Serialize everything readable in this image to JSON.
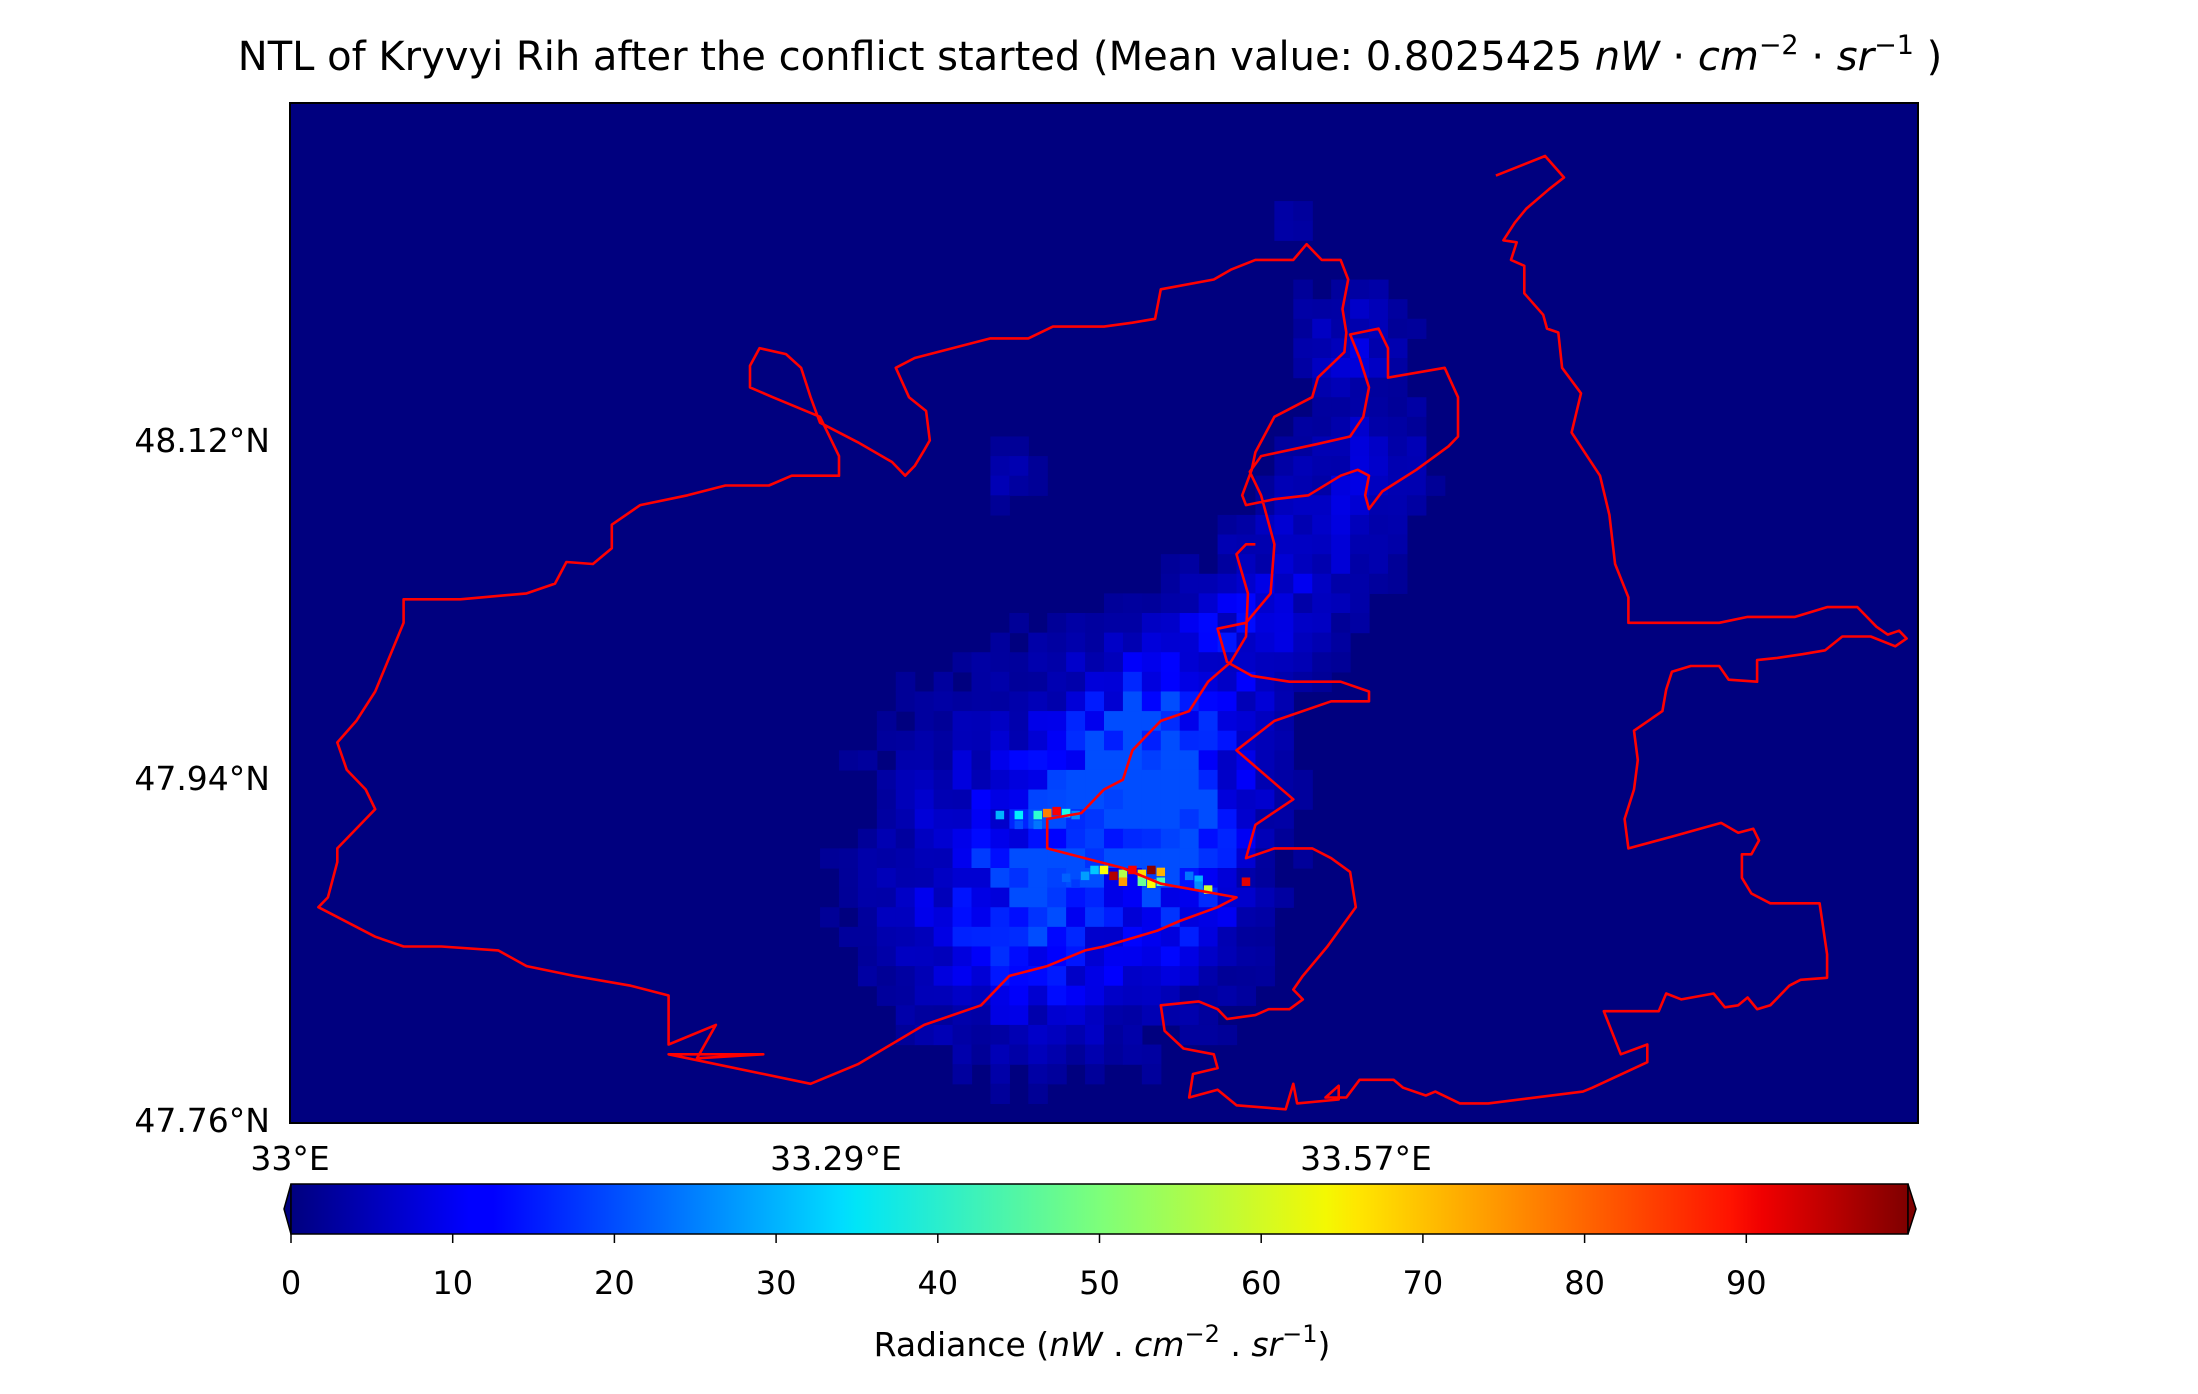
{
  "chart_data": {
    "type": "heatmap",
    "title_prefix": "NTL of Kryvyi Rih after the conflict started (Mean value: ",
    "mean_value": "0.8025425",
    "title_suffix": " )",
    "unit": {
      "main": "nW",
      "dot": " · ",
      "a": "cm",
      "exp_a": "−2",
      "b": "sr",
      "exp_b": "−1"
    },
    "x_axis": {
      "tick_labels": [
        "33°E",
        "33.29°E",
        "33.57°E"
      ],
      "ticks": [
        33.0,
        33.29,
        33.57
      ],
      "range": [
        33.0,
        33.86
      ]
    },
    "y_axis": {
      "tick_labels": [
        "48.12°N",
        "47.94°N",
        "47.76°N"
      ],
      "ticks": [
        48.12,
        47.94,
        47.76
      ],
      "range": [
        47.76,
        48.28
      ]
    },
    "colormap": "jet",
    "colorbar": {
      "min": 0,
      "max": 100,
      "extend": "both",
      "tick_labels": [
        "0",
        "10",
        "20",
        "30",
        "40",
        "50",
        "60",
        "70",
        "80",
        "90"
      ],
      "label": {
        "main": "Radiance (",
        "nW": "nW",
        "dot": " . ",
        "cm": "cm",
        "exp_a": "−2",
        "sr": "sr",
        "exp_b": "−1",
        "close": ")"
      }
    },
    "boundary_color": "#ff0000",
    "background_value": 0,
    "radiance_grid": {
      "cell_deg": 0.01,
      "origin_lon": 33.0,
      "origin_lat": 48.28,
      "cols": 86,
      "rows": 52,
      "hotspots": [
        {
          "lon": 33.385,
          "lat": 47.917,
          "value": 36
        },
        {
          "lon": 33.395,
          "lat": 47.917,
          "value": 42
        },
        {
          "lon": 33.375,
          "lat": 47.917,
          "value": 30
        },
        {
          "lon": 33.4,
          "lat": 47.918,
          "value": 75
        },
        {
          "lon": 33.405,
          "lat": 47.919,
          "value": 88
        },
        {
          "lon": 33.41,
          "lat": 47.918,
          "value": 40
        },
        {
          "lon": 33.415,
          "lat": 47.917,
          "value": 26
        },
        {
          "lon": 33.385,
          "lat": 47.912,
          "value": 20
        },
        {
          "lon": 33.395,
          "lat": 47.912,
          "value": 24
        },
        {
          "lon": 33.43,
          "lat": 47.889,
          "value": 62
        },
        {
          "lon": 33.435,
          "lat": 47.886,
          "value": 95
        },
        {
          "lon": 33.44,
          "lat": 47.887,
          "value": 55
        },
        {
          "lon": 33.445,
          "lat": 47.889,
          "value": 88
        },
        {
          "lon": 33.45,
          "lat": 47.887,
          "value": 66
        },
        {
          "lon": 33.455,
          "lat": 47.889,
          "value": 99
        },
        {
          "lon": 33.46,
          "lat": 47.888,
          "value": 70
        },
        {
          "lon": 33.44,
          "lat": 47.883,
          "value": 72
        },
        {
          "lon": 33.45,
          "lat": 47.883,
          "value": 48
        },
        {
          "lon": 33.455,
          "lat": 47.882,
          "value": 62
        },
        {
          "lon": 33.46,
          "lat": 47.883,
          "value": 45
        },
        {
          "lon": 33.42,
          "lat": 47.886,
          "value": 28
        },
        {
          "lon": 33.425,
          "lat": 47.889,
          "value": 32
        },
        {
          "lon": 33.41,
          "lat": 47.885,
          "value": 22
        },
        {
          "lon": 33.415,
          "lat": 47.882,
          "value": 18
        },
        {
          "lon": 33.475,
          "lat": 47.886,
          "value": 24
        },
        {
          "lon": 33.48,
          "lat": 47.884,
          "value": 30
        },
        {
          "lon": 33.485,
          "lat": 47.879,
          "value": 58
        },
        {
          "lon": 33.48,
          "lat": 47.881,
          "value": 26
        },
        {
          "lon": 33.505,
          "lat": 47.883,
          "value": 90
        }
      ],
      "glow_clusters": [
        {
          "lon": 33.41,
          "lat": 47.895,
          "spread": 0.09,
          "value": 11
        },
        {
          "lon": 33.45,
          "lat": 47.93,
          "spread": 0.05,
          "value": 10
        },
        {
          "lon": 33.47,
          "lat": 47.97,
          "spread": 0.04,
          "value": 8
        },
        {
          "lon": 33.5,
          "lat": 48.01,
          "spread": 0.035,
          "value": 7
        },
        {
          "lon": 33.54,
          "lat": 48.05,
          "spread": 0.04,
          "value": 7
        },
        {
          "lon": 33.57,
          "lat": 48.1,
          "spread": 0.035,
          "value": 6
        },
        {
          "lon": 33.56,
          "lat": 48.16,
          "spread": 0.03,
          "value": 7
        },
        {
          "lon": 33.38,
          "lat": 47.86,
          "spread": 0.05,
          "value": 7
        },
        {
          "lon": 33.47,
          "lat": 47.87,
          "spread": 0.03,
          "value": 6
        },
        {
          "lon": 33.38,
          "lat": 48.09,
          "spread": 0.015,
          "value": 5
        },
        {
          "lon": 33.53,
          "lat": 48.22,
          "spread": 0.01,
          "value": 5
        },
        {
          "lon": 33.44,
          "lat": 47.94,
          "spread": 0.02,
          "value": 14
        },
        {
          "lon": 33.47,
          "lat": 47.91,
          "spread": 0.025,
          "value": 13
        }
      ]
    },
    "boundary_lonlat": [
      [
        33.637,
        48.243
      ],
      [
        33.663,
        48.253
      ],
      [
        33.673,
        48.242
      ],
      [
        33.665,
        48.236
      ],
      [
        33.653,
        48.226
      ],
      [
        33.647,
        48.219
      ],
      [
        33.641,
        48.21
      ],
      [
        33.648,
        48.209
      ],
      [
        33.645,
        48.2
      ],
      [
        33.652,
        48.197
      ],
      [
        33.652,
        48.183
      ],
      [
        33.662,
        48.172
      ],
      [
        33.664,
        48.165
      ],
      [
        33.67,
        48.163
      ],
      [
        33.672,
        48.145
      ],
      [
        33.682,
        48.132
      ],
      [
        33.677,
        48.112
      ],
      [
        33.692,
        48.09
      ],
      [
        33.697,
        48.07
      ],
      [
        33.7,
        48.045
      ],
      [
        33.707,
        48.028
      ],
      [
        33.707,
        48.015
      ],
      [
        33.73,
        48.015
      ],
      [
        33.755,
        48.015
      ],
      [
        33.77,
        48.018
      ],
      [
        33.795,
        48.018
      ],
      [
        33.812,
        48.023
      ],
      [
        33.828,
        48.023
      ],
      [
        33.838,
        48.013
      ],
      [
        33.844,
        48.009
      ],
      [
        33.85,
        48.011
      ],
      [
        33.854,
        48.007
      ],
      [
        33.848,
        48.003
      ],
      [
        33.835,
        48.008
      ],
      [
        33.82,
        48.008
      ],
      [
        33.811,
        48.001
      ],
      [
        33.799,
        47.999
      ],
      [
        33.785,
        47.997
      ],
      [
        33.775,
        47.996
      ],
      [
        33.775,
        47.985
      ],
      [
        33.76,
        47.986
      ],
      [
        33.755,
        47.993
      ],
      [
        33.74,
        47.993
      ],
      [
        33.73,
        47.99
      ],
      [
        33.727,
        47.981
      ],
      [
        33.725,
        47.97
      ],
      [
        33.71,
        47.96
      ],
      [
        33.712,
        47.945
      ],
      [
        33.71,
        47.93
      ],
      [
        33.705,
        47.915
      ],
      [
        33.707,
        47.9
      ],
      [
        33.73,
        47.906
      ],
      [
        33.756,
        47.913
      ],
      [
        33.765,
        47.908
      ],
      [
        33.773,
        47.91
      ],
      [
        33.776,
        47.904
      ],
      [
        33.772,
        47.897
      ],
      [
        33.767,
        47.897
      ],
      [
        33.767,
        47.885
      ],
      [
        33.772,
        47.877
      ],
      [
        33.782,
        47.872
      ],
      [
        33.808,
        47.872
      ],
      [
        33.812,
        47.846
      ],
      [
        33.812,
        47.834
      ],
      [
        33.798,
        47.833
      ],
      [
        33.792,
        47.83
      ],
      [
        33.782,
        47.82
      ],
      [
        33.775,
        47.818
      ],
      [
        33.77,
        47.824
      ],
      [
        33.765,
        47.82
      ],
      [
        33.758,
        47.819
      ],
      [
        33.752,
        47.826
      ],
      [
        33.735,
        47.823
      ],
      [
        33.727,
        47.826
      ],
      [
        33.723,
        47.817
      ],
      [
        33.694,
        47.817
      ],
      [
        33.703,
        47.795
      ],
      [
        33.717,
        47.8
      ],
      [
        33.717,
        47.791
      ],
      [
        33.688,
        47.778
      ],
      [
        33.683,
        47.776
      ],
      [
        33.633,
        47.77
      ],
      [
        33.618,
        47.77
      ],
      [
        33.605,
        47.776
      ],
      [
        33.6,
        47.774
      ],
      [
        33.588,
        47.778
      ],
      [
        33.583,
        47.782
      ],
      [
        33.565,
        47.782
      ],
      [
        33.558,
        47.773
      ],
      [
        33.547,
        47.773
      ],
      [
        33.554,
        47.779
      ],
      [
        33.554,
        47.772
      ],
      [
        33.532,
        47.77
      ],
      [
        33.53,
        47.78
      ],
      [
        33.526,
        47.767
      ],
      [
        33.5,
        47.769
      ],
      [
        33.49,
        47.777
      ],
      [
        33.475,
        47.773
      ],
      [
        33.477,
        47.785
      ],
      [
        33.49,
        47.788
      ],
      [
        33.488,
        47.795
      ],
      [
        33.472,
        47.798
      ],
      [
        33.462,
        47.807
      ],
      [
        33.46,
        47.82
      ],
      [
        33.48,
        47.822
      ],
      [
        33.49,
        47.818
      ],
      [
        33.495,
        47.813
      ],
      [
        33.51,
        47.815
      ],
      [
        33.517,
        47.818
      ],
      [
        33.528,
        47.818
      ],
      [
        33.535,
        47.823
      ],
      [
        33.53,
        47.828
      ],
      [
        33.535,
        47.835
      ],
      [
        33.548,
        47.85
      ],
      [
        33.563,
        47.87
      ],
      [
        33.56,
        47.888
      ],
      [
        33.55,
        47.895
      ],
      [
        33.54,
        47.9
      ],
      [
        33.52,
        47.9
      ],
      [
        33.505,
        47.895
      ],
      [
        33.51,
        47.912
      ],
      [
        33.53,
        47.925
      ],
      [
        33.5,
        47.95
      ],
      [
        33.52,
        47.965
      ],
      [
        33.55,
        47.975
      ],
      [
        33.57,
        47.975
      ],
      [
        33.57,
        47.98
      ],
      [
        33.555,
        47.985
      ],
      [
        33.528,
        47.985
      ],
      [
        33.508,
        47.988
      ],
      [
        33.495,
        47.995
      ],
      [
        33.49,
        48.012
      ],
      [
        33.505,
        48.015
      ],
      [
        33.518,
        48.03
      ],
      [
        33.52,
        48.055
      ],
      [
        33.513,
        48.08
      ],
      [
        33.507,
        48.092
      ],
      [
        33.513,
        48.1
      ],
      [
        33.542,
        48.106
      ],
      [
        33.56,
        48.11
      ],
      [
        33.567,
        48.12
      ],
      [
        33.57,
        48.135
      ],
      [
        33.565,
        48.15
      ],
      [
        33.56,
        48.162
      ],
      [
        33.575,
        48.165
      ],
      [
        33.58,
        48.155
      ],
      [
        33.58,
        48.14
      ],
      [
        33.61,
        48.145
      ],
      [
        33.617,
        48.13
      ],
      [
        33.617,
        48.11
      ],
      [
        33.612,
        48.105
      ],
      [
        33.595,
        48.093
      ],
      [
        33.577,
        48.082
      ],
      [
        33.57,
        48.073
      ],
      [
        33.568,
        48.08
      ],
      [
        33.57,
        48.09
      ],
      [
        33.564,
        48.093
      ],
      [
        33.555,
        48.09
      ],
      [
        33.538,
        48.08
      ],
      [
        33.52,
        48.078
      ],
      [
        33.505,
        48.075
      ],
      [
        33.503,
        48.08
      ],
      [
        33.508,
        48.093
      ],
      [
        33.51,
        48.102
      ],
      [
        33.52,
        48.12
      ],
      [
        33.54,
        48.13
      ],
      [
        33.543,
        48.14
      ],
      [
        33.557,
        48.153
      ],
      [
        33.558,
        48.163
      ],
      [
        33.556,
        48.175
      ],
      [
        33.559,
        48.19
      ],
      [
        33.555,
        48.2
      ],
      [
        33.545,
        48.2
      ],
      [
        33.537,
        48.208
      ],
      [
        33.53,
        48.2
      ],
      [
        33.51,
        48.2
      ],
      [
        33.497,
        48.195
      ],
      [
        33.488,
        48.19
      ],
      [
        33.46,
        48.185
      ],
      [
        33.457,
        48.17
      ],
      [
        33.445,
        48.168
      ],
      [
        33.43,
        48.166
      ],
      [
        33.403,
        48.166
      ],
      [
        33.39,
        48.16
      ],
      [
        33.37,
        48.16
      ],
      [
        33.33,
        48.15
      ],
      [
        33.32,
        48.145
      ],
      [
        33.327,
        48.13
      ],
      [
        33.336,
        48.123
      ],
      [
        33.338,
        48.108
      ],
      [
        33.335,
        48.103
      ],
      [
        33.33,
        48.095
      ],
      [
        33.325,
        48.09
      ],
      [
        33.318,
        48.097
      ],
      [
        33.3,
        48.107
      ],
      [
        33.28,
        48.117
      ],
      [
        33.275,
        48.13
      ],
      [
        33.27,
        48.145
      ],
      [
        33.262,
        48.152
      ],
      [
        33.248,
        48.155
      ],
      [
        33.243,
        48.146
      ],
      [
        33.243,
        48.135
      ],
      [
        33.255,
        48.13
      ],
      [
        33.28,
        48.12
      ],
      [
        33.29,
        48.1
      ],
      [
        33.29,
        48.09
      ],
      [
        33.265,
        48.09
      ],
      [
        33.253,
        48.085
      ],
      [
        33.23,
        48.085
      ],
      [
        33.21,
        48.08
      ],
      [
        33.185,
        48.075
      ],
      [
        33.17,
        48.065
      ],
      [
        33.17,
        48.053
      ],
      [
        33.16,
        48.045
      ],
      [
        33.146,
        48.046
      ],
      [
        33.14,
        48.035
      ],
      [
        33.125,
        48.03
      ],
      [
        33.09,
        48.027
      ],
      [
        33.06,
        48.027
      ],
      [
        33.06,
        48.015
      ],
      [
        33.045,
        47.98
      ],
      [
        33.035,
        47.965
      ],
      [
        33.025,
        47.954
      ],
      [
        33.03,
        47.94
      ],
      [
        33.04,
        47.93
      ],
      [
        33.045,
        47.92
      ],
      [
        33.04,
        47.915
      ],
      [
        33.025,
        47.9
      ],
      [
        33.025,
        47.893
      ],
      [
        33.02,
        47.875
      ],
      [
        33.015,
        47.87
      ],
      [
        33.045,
        47.855
      ],
      [
        33.06,
        47.85
      ],
      [
        33.08,
        47.85
      ],
      [
        33.11,
        47.848
      ],
      [
        33.125,
        47.84
      ],
      [
        33.15,
        47.835
      ],
      [
        33.18,
        47.83
      ],
      [
        33.2,
        47.825
      ],
      [
        33.2,
        47.8
      ],
      [
        33.225,
        47.81
      ],
      [
        33.215,
        47.793
      ],
      [
        33.25,
        47.795
      ],
      [
        33.2,
        47.795
      ],
      [
        33.275,
        47.78
      ],
      [
        33.3,
        47.79
      ],
      [
        33.335,
        47.81
      ],
      [
        33.365,
        47.82
      ],
      [
        33.38,
        47.835
      ],
      [
        33.4,
        47.84
      ],
      [
        33.42,
        47.848
      ],
      [
        33.43,
        47.85
      ],
      [
        33.458,
        47.858
      ],
      [
        33.47,
        47.863
      ],
      [
        33.49,
        47.87
      ],
      [
        33.5,
        47.875
      ],
      [
        33.46,
        47.882
      ],
      [
        33.44,
        47.89
      ],
      [
        33.42,
        47.895
      ],
      [
        33.4,
        47.9
      ],
      [
        33.4,
        47.915
      ],
      [
        33.418,
        47.918
      ],
      [
        33.43,
        47.93
      ],
      [
        33.44,
        47.935
      ],
      [
        33.445,
        47.95
      ],
      [
        33.453,
        47.958
      ],
      [
        33.46,
        47.965
      ],
      [
        33.475,
        47.97
      ],
      [
        33.485,
        47.985
      ],
      [
        33.497,
        47.995
      ],
      [
        33.505,
        48.008
      ],
      [
        33.506,
        48.03
      ],
      [
        33.5,
        48.05
      ],
      [
        33.505,
        48.055
      ],
      [
        33.51,
        48.055
      ]
    ]
  }
}
